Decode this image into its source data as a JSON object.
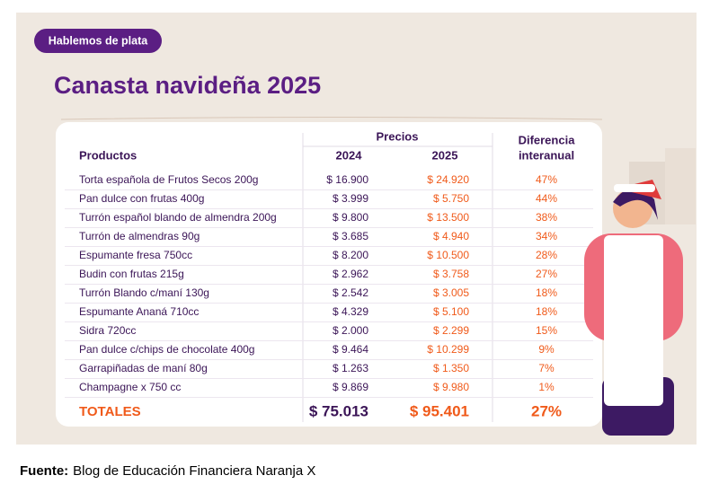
{
  "header": {
    "badge": "Hablemos de plata",
    "title": "Canasta navideña 2025"
  },
  "table": {
    "columns": {
      "product": "Productos",
      "prices": "Precios",
      "year_a": "2024",
      "year_b": "2025",
      "diff_1": "Diferencia",
      "diff_2": "interanual"
    },
    "rows": [
      [
        "Torta española de Frutos Secos 200g",
        "$ 16.900",
        "$ 24.920",
        "47%"
      ],
      [
        "Pan dulce con frutas 400g",
        "$ 3.999",
        "$ 5.750",
        "44%"
      ],
      [
        "Turrón español blando de almendra 200g",
        "$ 9.800",
        "$ 13.500",
        "38%"
      ],
      [
        "Turrón de almendras 90g",
        "$ 3.685",
        "$ 4.940",
        "34%"
      ],
      [
        "Espumante fresa 750cc",
        "$ 8.200",
        "$ 10.500",
        "28%"
      ],
      [
        "Budin con frutas 215g",
        "$ 2.962",
        "$ 3.758",
        "27%"
      ],
      [
        "Turrón Blando c/maní 130g",
        "$ 2.542",
        "$ 3.005",
        "18%"
      ],
      [
        "Espumante Ananá 710cc",
        "$ 4.329",
        "$ 5.100",
        "18%"
      ],
      [
        "Sidra 720cc",
        "$ 2.000",
        "$ 2.299",
        "15%"
      ],
      [
        "Pan dulce c/chips de chocolate 400g",
        "$ 9.464",
        "$ 10.299",
        "9%"
      ],
      [
        "Garrapiñadas de maní 80g",
        "$ 1.263",
        "$ 1.350",
        "7%"
      ],
      [
        "Champagne x 750 cc",
        "$ 9.869",
        "$ 9.980",
        "1%"
      ]
    ],
    "totals": [
      "TOTALES",
      "$ 75.013",
      "$ 95.401",
      "27%"
    ]
  },
  "footer": {
    "label": "Fuente:",
    "text": "Blog de Educación Financiera Naranja X"
  }
}
